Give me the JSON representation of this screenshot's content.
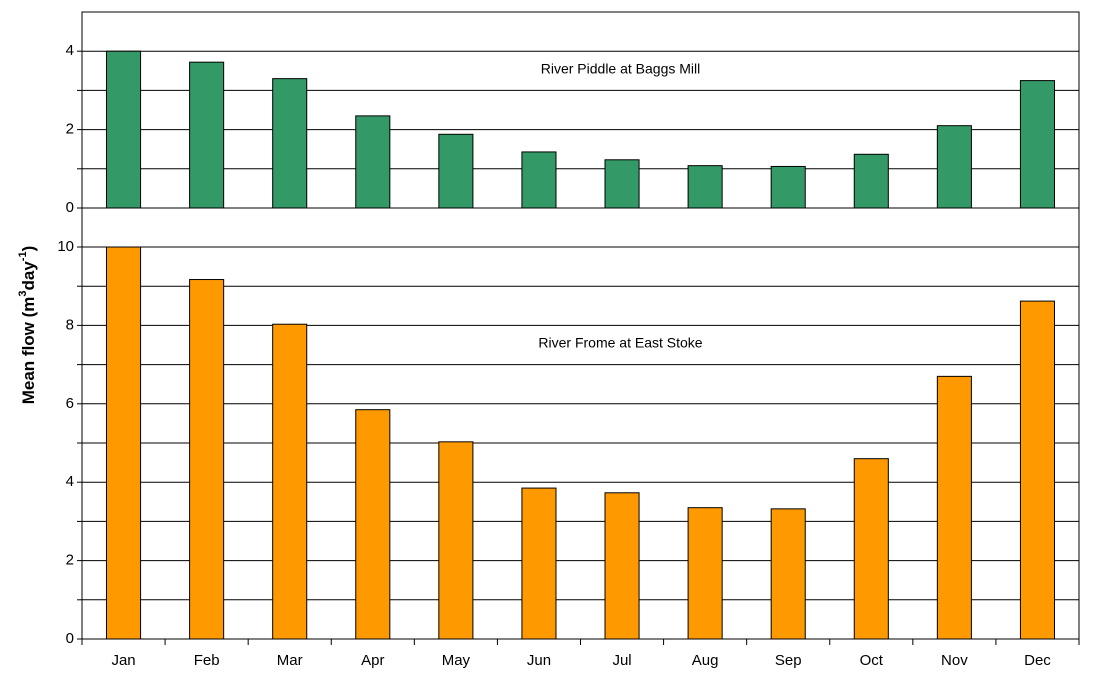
{
  "chart_data": [
    {
      "type": "bar",
      "annotation": "River Piddle at Baggs Mill",
      "color": "#339966",
      "values": [
        4.0,
        3.72,
        3.3,
        2.35,
        1.88,
        1.43,
        1.23,
        1.08,
        1.06,
        1.37,
        2.1,
        3.25
      ],
      "ylim": [
        0,
        5
      ],
      "yticks": [
        0,
        2,
        4
      ],
      "minor_yticks": [
        1,
        3
      ],
      "grid": true
    },
    {
      "type": "bar",
      "annotation": "River Frome at East Stoke",
      "color": "#ff9900",
      "categories": [
        "Jan",
        "Feb",
        "Mar",
        "Apr",
        "May",
        "Jun",
        "Jul",
        "Aug",
        "Sep",
        "Oct",
        "Nov",
        "Dec"
      ],
      "values": [
        10.0,
        9.17,
        8.03,
        5.85,
        5.03,
        3.85,
        3.73,
        3.35,
        3.32,
        4.6,
        6.7,
        8.62
      ],
      "ylim": [
        0,
        10
      ],
      "yticks": [
        0,
        2,
        4,
        6,
        8,
        10
      ],
      "minor_yticks": [
        1,
        3,
        5,
        7,
        9
      ],
      "grid": true,
      "ylabel": [
        "Mean flow (m",
        "3",
        "day",
        "-1",
        ")"
      ]
    }
  ]
}
